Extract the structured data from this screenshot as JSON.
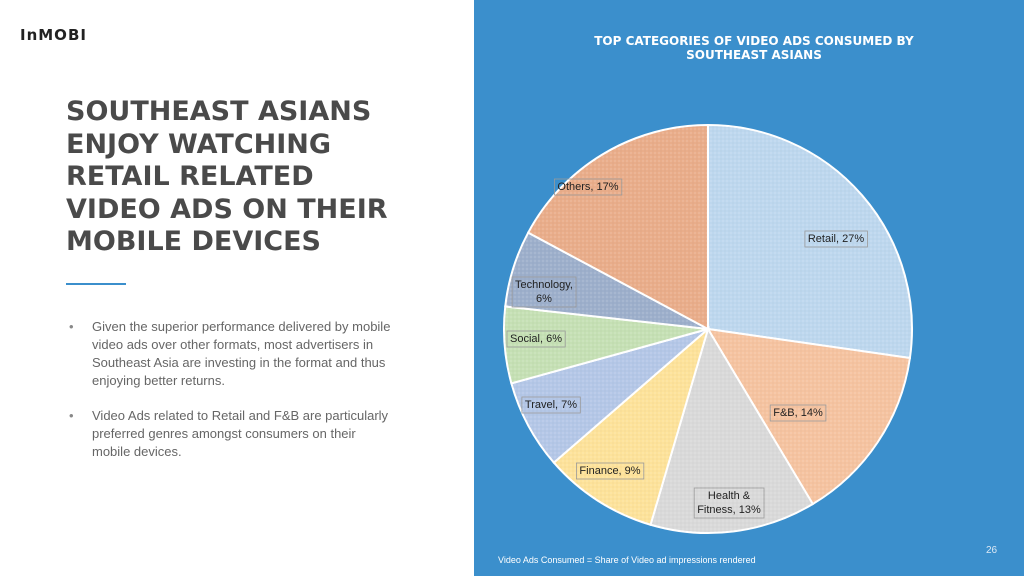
{
  "logo": {
    "text": "InMOBI"
  },
  "headline": [
    "SOUTHEAST ASIANS",
    "ENJOY WATCHING",
    "RETAIL RELATED",
    "VIDEO ADS ON THEIR",
    "MOBILE DEVICES"
  ],
  "bullets": [
    "Given the superior performance delivered by mobile video ads over other formats, most advertisers in Southeast Asia are investing in the format and thus enjoying better returns.",
    "Video Ads related to Retail and F&B are particularly preferred genres amongst consumers on their mobile devices."
  ],
  "footnote": "Video Ads Consumed = Share of Video ad impressions rendered",
  "page_number": "26",
  "colors": {
    "panel": "#3b8fcc",
    "accent": "#3b8fcc"
  },
  "chart_data": {
    "type": "pie",
    "title": "TOP CATEGORIES OF VIDEO ADS CONSUMED BY SOUTHEAST ASIANS",
    "unit": "%",
    "slices": [
      {
        "label": "Retail",
        "value": 27,
        "color": "#bdd7ee"
      },
      {
        "label": "F&B",
        "value": 14,
        "color": "#f5c3a0"
      },
      {
        "label": "Health & Fitness",
        "value": 13,
        "color": "#d9d9d9"
      },
      {
        "label": "Finance",
        "value": 9,
        "color": "#fde29a"
      },
      {
        "label": "Travel",
        "value": 7,
        "color": "#b4c7e7"
      },
      {
        "label": "Social",
        "value": 6,
        "color": "#c5e0b4"
      },
      {
        "label": "Technology",
        "value": 6,
        "color": "#9dafcb"
      },
      {
        "label": "Others",
        "value": 17,
        "color": "#e9ad8a"
      }
    ],
    "data_labels": [
      "Retail, 27%",
      "F&B, 14%",
      "Health &\nFitness, 13%",
      "Finance, 9%",
      "Travel, 7%",
      "Social, 6%",
      "Technology,\n6%",
      "Others, 17%"
    ]
  }
}
